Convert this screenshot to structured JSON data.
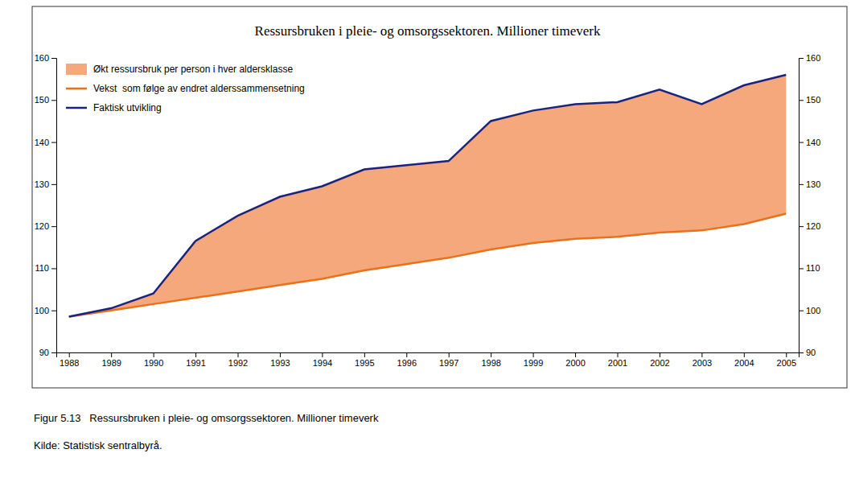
{
  "chart_data": {
    "type": "line",
    "title": "Ressursbruken i pleie- og omsorgssektoren. Millioner timeverk",
    "x": [
      1988,
      1989,
      1990,
      1991,
      1992,
      1993,
      1994,
      1995,
      1996,
      1997,
      1998,
      1999,
      2000,
      2001,
      2002,
      2003,
      2004,
      2005
    ],
    "series": [
      {
        "name": "Økt ressursbruk per person i hver aldersklasse",
        "type": "area",
        "color": "#f5a87c",
        "values": [
          98.5,
          100.5,
          104.0,
          116.5,
          122.5,
          127.0,
          129.5,
          133.5,
          134.5,
          135.5,
          145.0,
          147.5,
          149.0,
          149.5,
          152.5,
          149.0,
          153.5,
          156.0
        ],
        "base": [
          98.5,
          100.0,
          101.5,
          103.0,
          104.5,
          106.0,
          107.5,
          109.5,
          111.0,
          112.5,
          114.5,
          116.0,
          117.0,
          117.5,
          118.5,
          119.0,
          120.5,
          123.0
        ]
      },
      {
        "name": "Vekst  som følge av endret alderssammensetning",
        "type": "line",
        "color": "#e8711a",
        "values": [
          98.5,
          100.0,
          101.5,
          103.0,
          104.5,
          106.0,
          107.5,
          109.5,
          111.0,
          112.5,
          114.5,
          116.0,
          117.0,
          117.5,
          118.5,
          119.0,
          120.5,
          123.0
        ]
      },
      {
        "name": "Faktisk utvikling",
        "type": "line",
        "color": "#1a237e",
        "values": [
          98.5,
          100.5,
          104.0,
          116.5,
          122.5,
          127.0,
          129.5,
          133.5,
          134.5,
          135.5,
          145.0,
          147.5,
          149.0,
          149.5,
          152.5,
          149.0,
          153.5,
          156.0
        ]
      }
    ],
    "xlim": [
      1987.7,
      2005.3
    ],
    "xticks": [
      1988,
      1989,
      1990,
      1991,
      1992,
      1993,
      1994,
      1995,
      1996,
      1997,
      1998,
      1999,
      2000,
      2001,
      2002,
      2003,
      2004,
      2005
    ],
    "ylim": [
      90,
      160
    ],
    "yticks": [
      90,
      100,
      110,
      120,
      130,
      140,
      150,
      160
    ],
    "y2lim": [
      90,
      160
    ],
    "y2ticks": [
      90,
      100,
      110,
      120,
      130,
      140,
      150,
      160
    ],
    "grid": false,
    "legend": "upper left",
    "annotations": [
      "Figur 5.13   Ressursbruken i pleie- og omsorgssektoren. Millioner timeverk",
      "Kilde: Statistisk sentralbyrå."
    ]
  }
}
